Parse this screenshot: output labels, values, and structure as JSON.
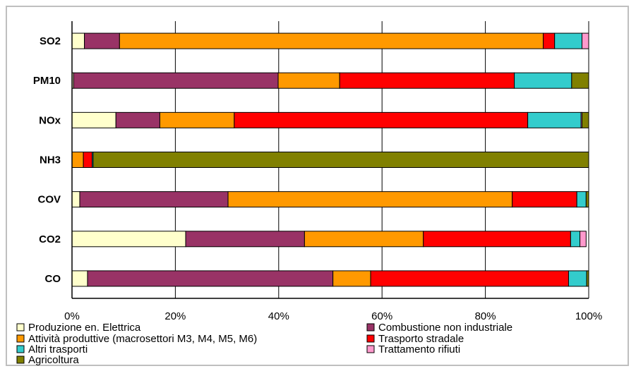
{
  "chart_data": {
    "type": "bar",
    "orientation": "horizontal",
    "stacked": true,
    "percent": true,
    "categories": [
      "SO2",
      "PM10",
      "NOx",
      "NH3",
      "COV",
      "CO2",
      "CO"
    ],
    "x_ticks": [
      "0%",
      "20%",
      "40%",
      "60%",
      "80%",
      "100%"
    ],
    "xlim": [
      0,
      100
    ],
    "grid": "vertical",
    "legend_position": "bottom",
    "series": [
      {
        "name": "Produzione en. Elettrica",
        "color": "#ffffcc",
        "values": [
          2.4,
          0.3,
          8.5,
          0,
          1.5,
          22,
          3
        ]
      },
      {
        "name": "Combustione non industriale",
        "color": "#993366",
        "values": [
          6.8,
          39.6,
          8.5,
          0,
          28.7,
          23,
          47.5
        ]
      },
      {
        "name": "Attività produttive (macrosettori M3, M4, M5, M6)",
        "color": "#ff9900",
        "values": [
          82,
          11.9,
          14.4,
          2.2,
          55,
          23,
          7.3
        ]
      },
      {
        "name": "Trasporto stradale",
        "color": "#ff0000",
        "values": [
          2.2,
          33.8,
          56.8,
          1.7,
          12.5,
          28.5,
          38.3
        ]
      },
      {
        "name": "Altri trasporti",
        "color": "#33cccc",
        "values": [
          5.3,
          11.1,
          10.3,
          0.2,
          1.8,
          1.8,
          3.5
        ]
      },
      {
        "name": "Trattamento rifiuti",
        "color": "#ff99cc",
        "values": [
          1.3,
          0,
          0.2,
          0,
          0,
          1.2,
          0
        ]
      },
      {
        "name": "Agricoltura",
        "color": "#808000",
        "values": [
          0,
          3.3,
          1.3,
          95.9,
          0.5,
          0,
          0.4
        ]
      }
    ]
  }
}
